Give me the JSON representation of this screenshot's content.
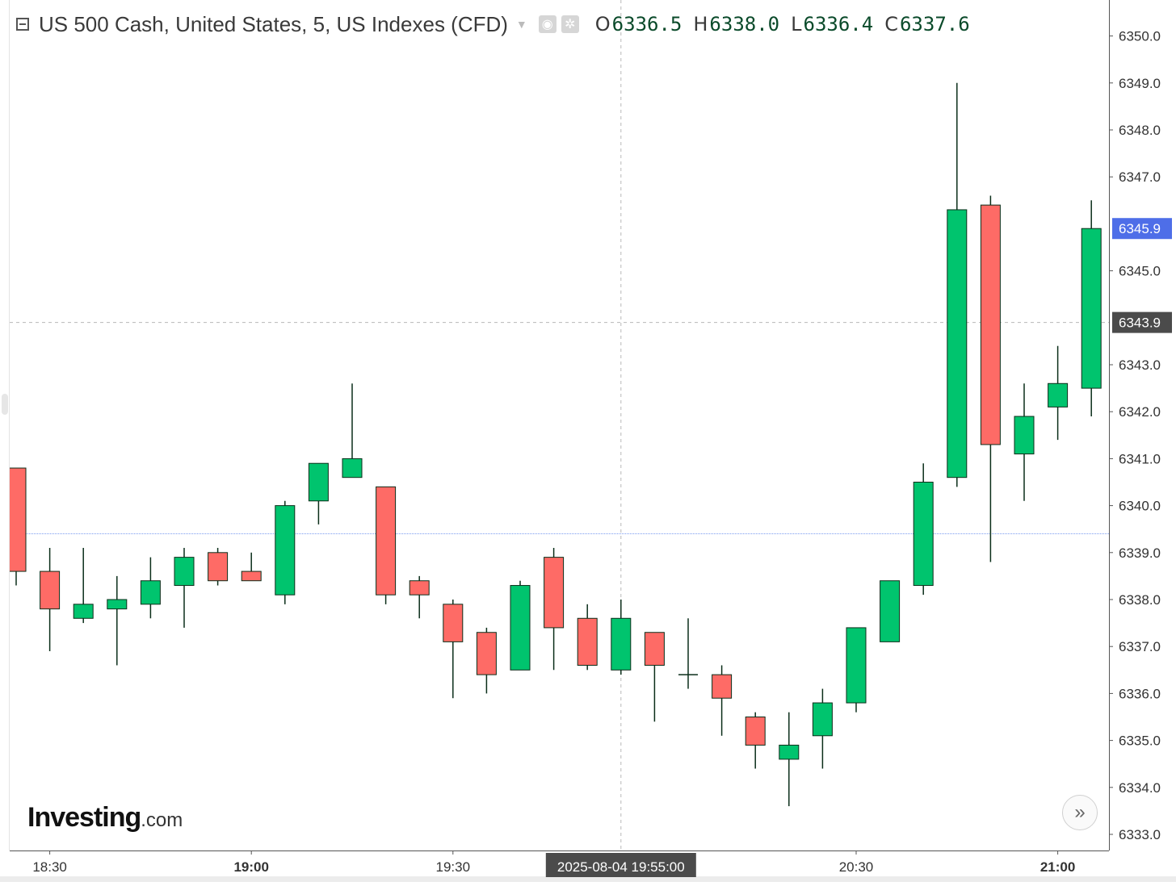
{
  "header": {
    "symbol_title": "US 500 Cash, United States, 5, US Indexes (CFD)",
    "ohlc": [
      {
        "key": "O",
        "value": "6336.5"
      },
      {
        "key": "H",
        "value": "6338.0"
      },
      {
        "key": "L",
        "value": "6336.4"
      },
      {
        "key": "C",
        "value": "6337.6"
      }
    ]
  },
  "logo": {
    "brand": "Investing",
    "suffix": ".com"
  },
  "icons": {
    "collapse": "collapse-square-icon",
    "dropdown": "caret-down-icon",
    "visibility": "eye-icon",
    "settings": "gear-icon",
    "scroll": "double-chevron-right-icon"
  },
  "colors": {
    "up": "#00c46e",
    "down": "#fe6b66",
    "wick": "#0b2e1a",
    "axis_text": "#333333",
    "last_price_bg": "#4e6ee8",
    "crosshair_bg": "#4b4b4b",
    "guide_line": "#7b9cf0",
    "grid_dash": "#b8b8b8"
  },
  "chart_data": {
    "type": "candlestick",
    "interval_minutes": 5,
    "ylim": [
      6332.6,
      6350.4
    ],
    "y_ticks": [
      "6333.0",
      "6334.0",
      "6335.0",
      "6336.0",
      "6337.0",
      "6338.0",
      "6339.0",
      "6340.0",
      "6341.0",
      "6342.0",
      "6343.0",
      "6344.0",
      "6345.0",
      "6346.0",
      "6347.0",
      "6348.0",
      "6349.0",
      "6350.0"
    ],
    "hidden_y_ticks": [
      "6344.0",
      "6346.0"
    ],
    "x_labels": [
      {
        "time": "18:30",
        "bold": false
      },
      {
        "time": "19:00",
        "bold": true
      },
      {
        "time": "19:30",
        "bold": false
      },
      {
        "time": "20:30",
        "bold": false
      },
      {
        "time": "21:00",
        "bold": true
      }
    ],
    "candles": [
      {
        "t": "18:25",
        "o": 6340.8,
        "h": 6340.8,
        "l": 6338.3,
        "c": 6338.6
      },
      {
        "t": "18:30",
        "o": 6338.6,
        "h": 6339.1,
        "l": 6336.9,
        "c": 6337.8
      },
      {
        "t": "18:35",
        "o": 6337.6,
        "h": 6339.1,
        "l": 6337.5,
        "c": 6337.9
      },
      {
        "t": "18:40",
        "o": 6337.8,
        "h": 6338.5,
        "l": 6336.6,
        "c": 6338.0
      },
      {
        "t": "18:45",
        "o": 6337.9,
        "h": 6338.9,
        "l": 6337.6,
        "c": 6338.4
      },
      {
        "t": "18:50",
        "o": 6338.3,
        "h": 6339.1,
        "l": 6337.4,
        "c": 6338.9
      },
      {
        "t": "18:55",
        "o": 6339.0,
        "h": 6339.1,
        "l": 6338.3,
        "c": 6338.4
      },
      {
        "t": "19:00",
        "o": 6338.6,
        "h": 6339.0,
        "l": 6338.4,
        "c": 6338.4
      },
      {
        "t": "19:05",
        "o": 6338.1,
        "h": 6340.1,
        "l": 6337.9,
        "c": 6340.0
      },
      {
        "t": "19:10",
        "o": 6340.1,
        "h": 6340.9,
        "l": 6339.6,
        "c": 6340.9
      },
      {
        "t": "19:15",
        "o": 6340.6,
        "h": 6342.6,
        "l": 6340.6,
        "c": 6341.0
      },
      {
        "t": "19:20",
        "o": 6340.4,
        "h": 6340.4,
        "l": 6337.9,
        "c": 6338.1
      },
      {
        "t": "19:25",
        "o": 6338.4,
        "h": 6338.5,
        "l": 6337.6,
        "c": 6338.1
      },
      {
        "t": "19:30",
        "o": 6337.9,
        "h": 6338.0,
        "l": 6335.9,
        "c": 6337.1
      },
      {
        "t": "19:35",
        "o": 6337.3,
        "h": 6337.4,
        "l": 6336.0,
        "c": 6336.4
      },
      {
        "t": "19:40",
        "o": 6336.5,
        "h": 6338.4,
        "l": 6336.5,
        "c": 6338.3
      },
      {
        "t": "19:45",
        "o": 6338.9,
        "h": 6339.1,
        "l": 6336.5,
        "c": 6337.4
      },
      {
        "t": "19:50",
        "o": 6337.6,
        "h": 6337.9,
        "l": 6336.5,
        "c": 6336.6
      },
      {
        "t": "19:55",
        "o": 6336.5,
        "h": 6338.0,
        "l": 6336.4,
        "c": 6337.6
      },
      {
        "t": "20:00",
        "o": 6337.3,
        "h": 6337.3,
        "l": 6335.4,
        "c": 6336.6
      },
      {
        "t": "20:05",
        "o": 6336.4,
        "h": 6337.6,
        "l": 6336.1,
        "c": 6336.4
      },
      {
        "t": "20:10",
        "o": 6336.4,
        "h": 6336.6,
        "l": 6335.1,
        "c": 6335.9
      },
      {
        "t": "20:15",
        "o": 6335.5,
        "h": 6335.6,
        "l": 6334.4,
        "c": 6334.9
      },
      {
        "t": "20:20",
        "o": 6334.6,
        "h": 6335.6,
        "l": 6333.6,
        "c": 6334.9
      },
      {
        "t": "20:25",
        "o": 6335.1,
        "h": 6336.1,
        "l": 6334.4,
        "c": 6335.8
      },
      {
        "t": "20:30",
        "o": 6335.8,
        "h": 6337.4,
        "l": 6335.6,
        "c": 6337.4
      },
      {
        "t": "20:35",
        "o": 6337.1,
        "h": 6338.4,
        "l": 6337.1,
        "c": 6338.4
      },
      {
        "t": "20:40",
        "o": 6338.3,
        "h": 6340.9,
        "l": 6338.1,
        "c": 6340.5
      },
      {
        "t": "20:45",
        "o": 6340.6,
        "h": 6349.0,
        "l": 6340.4,
        "c": 6346.3
      },
      {
        "t": "20:50",
        "o": 6346.4,
        "h": 6346.6,
        "l": 6338.8,
        "c": 6341.3
      },
      {
        "t": "20:55",
        "o": 6341.1,
        "h": 6342.6,
        "l": 6340.1,
        "c": 6341.9
      },
      {
        "t": "21:00",
        "o": 6342.1,
        "h": 6343.4,
        "l": 6341.4,
        "c": 6342.6
      },
      {
        "t": "21:05",
        "o": 6342.5,
        "h": 6346.5,
        "l": 6341.9,
        "c": 6345.9
      }
    ],
    "last_price": "6345.9",
    "crosshair": {
      "price": "6343.9",
      "datetime": "2025-08-04 19:55:00",
      "candle_time": "19:55"
    },
    "guide_line_price": 6339.4
  }
}
